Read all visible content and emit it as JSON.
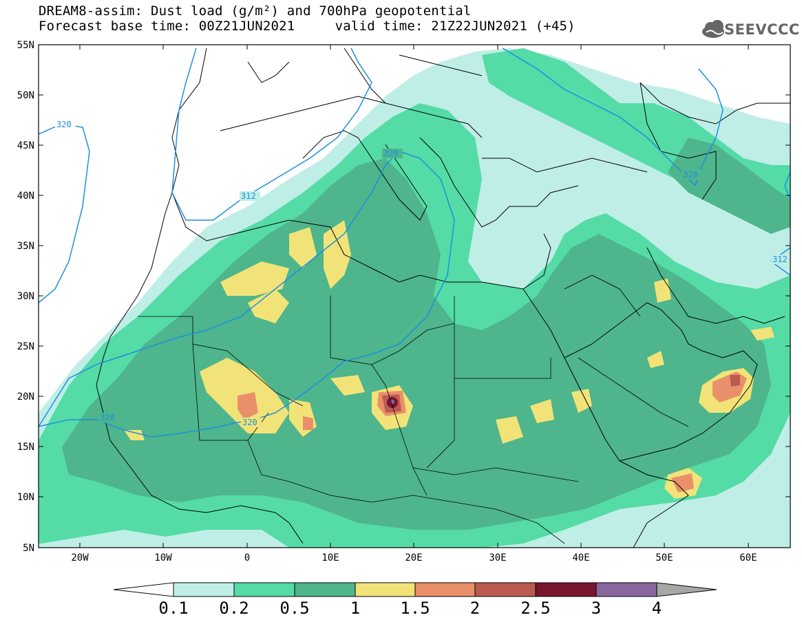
{
  "header": {
    "title_line1": "DREAM8-assim: Dust load (g/m²) and 700hPa geopotential",
    "title_line2": "Forecast base time: 00Z21JUN2021     valid time: 21Z22JUN2021 (+45)",
    "logo_text": "SEEVCCC",
    "logo_icon": "cloud-icon"
  },
  "map": {
    "lat_labels": [
      "55N",
      "50N",
      "45N",
      "40N",
      "35N",
      "30N",
      "25N",
      "20N",
      "15N",
      "10N",
      "5N"
    ],
    "lon_labels": [
      "20W",
      "10W",
      "0",
      "10E",
      "20E",
      "30E",
      "40E",
      "50E",
      "60E"
    ],
    "contour_labels": [
      "320",
      "312",
      "320",
      "320",
      "320",
      "320",
      "312"
    ],
    "colors": {
      "c01": "#bfeee6",
      "c02": "#55dba6",
      "c05": "#4eb58c",
      "c1": "#f2e378",
      "c15": "#e9906b",
      "c2": "#bb5b50",
      "c25": "#7a1530",
      "c3": "#8a669e",
      "c4": "#a7a7a7",
      "coast": "#000000",
      "contour": "#1d8fe0"
    }
  },
  "colorbar": {
    "labels": [
      "0.1",
      "0.2",
      "0.5",
      "1",
      "1.5",
      "2",
      "2.5",
      "3",
      "4"
    ],
    "colors": [
      "#bfeee6",
      "#55dba6",
      "#4eb58c",
      "#f2e378",
      "#e9906b",
      "#bb5b50",
      "#7a1530",
      "#8a669e"
    ],
    "low_arrow_color": "#ffffff",
    "high_arrow_color": "#a7a7a7"
  }
}
